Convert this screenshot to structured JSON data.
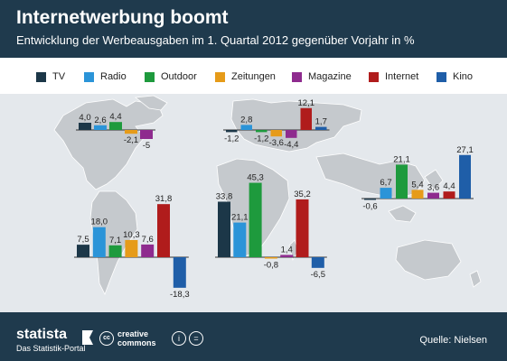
{
  "header": {
    "title": "Internetwerbung boomt",
    "subtitle": "Entwicklung der Werbeausgaben im 1. Quartal 2012 gegenüber Vorjahr in %"
  },
  "legend": [
    {
      "name": "TV",
      "color": "#1c3748"
    },
    {
      "name": "Radio",
      "color": "#2b94d8"
    },
    {
      "name": "Outdoor",
      "color": "#1e9a3d"
    },
    {
      "name": "Zeitungen",
      "color": "#e69b19"
    },
    {
      "name": "Magazine",
      "color": "#8e2b8e"
    },
    {
      "name": "Internet",
      "color": "#b01c1c"
    },
    {
      "name": "Kino",
      "color": "#1f5ea8"
    }
  ],
  "chart_data": [
    {
      "type": "bar",
      "categories": [
        "TV",
        "Radio",
        "Outdoor",
        "Zeitungen",
        "Magazine",
        "Internet",
        "Kino"
      ],
      "values": [
        4.0,
        2.6,
        4.4,
        -2.1,
        -5,
        null,
        null
      ],
      "labels": [
        "4,0",
        "2,6",
        "4,4",
        "-2,1",
        "-5",
        "",
        ""
      ]
    },
    {
      "type": "bar",
      "categories": [
        "TV",
        "Radio",
        "Outdoor",
        "Zeitungen",
        "Magazine",
        "Internet",
        "Kino"
      ],
      "values": [
        -1.2,
        2.8,
        -1.2,
        -3.6,
        -4.4,
        12.1,
        1.7
      ],
      "labels": [
        "-1,2",
        "2,8",
        "-1,2",
        "-3,6",
        "-4,4",
        "12,1",
        "1,7"
      ]
    },
    {
      "type": "bar",
      "categories": [
        "TV",
        "Radio",
        "Outdoor",
        "Zeitungen",
        "Magazine",
        "Internet",
        "Kino"
      ],
      "values": [
        -0.6,
        6.7,
        21.1,
        5.4,
        3.6,
        4.4,
        27.1
      ],
      "labels": [
        "-0,6",
        "6,7",
        "21,1",
        "5,4",
        "3,6",
        "4,4",
        "27,1"
      ]
    },
    {
      "type": "bar",
      "categories": [
        "TV",
        "Radio",
        "Outdoor",
        "Zeitungen",
        "Magazine",
        "Internet",
        "Kino"
      ],
      "values": [
        7.5,
        18.0,
        7.1,
        10.3,
        7.6,
        31.8,
        -18.3
      ],
      "labels": [
        "7,5",
        "18,0",
        "7,1",
        "10,3",
        "7,6",
        "31,8",
        "-18,3"
      ]
    },
    {
      "type": "bar",
      "categories": [
        "TV",
        "Radio",
        "Outdoor",
        "Zeitungen",
        "Magazine",
        "Internet",
        "Kino"
      ],
      "values": [
        33.8,
        21.1,
        45.3,
        -0.8,
        1.4,
        35.2,
        -6.5
      ],
      "labels": [
        "33,8",
        "21,1",
        "45,3",
        "-0,8",
        "1,4",
        "35,2",
        "-6,5"
      ]
    }
  ],
  "footer": {
    "brand": "statista",
    "tagline": "Das Statistik-Portal",
    "cc_top": "creative",
    "cc_bottom": "commons",
    "cc_mark": "cc",
    "by_mark": "i",
    "eq_mark": "=",
    "source": "Quelle: Nielsen"
  }
}
